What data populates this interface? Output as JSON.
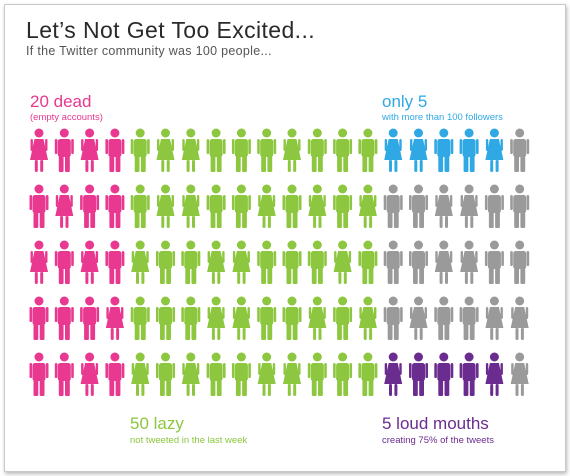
{
  "title": "Let’s Not Get Too Excited...",
  "subtitle": "If the Twitter community was 100 people...",
  "groups": {
    "dead": {
      "headline": "20 dead",
      "detail": "(empty accounts)",
      "count": 20,
      "color": "#e8388f"
    },
    "lazy": {
      "headline": "50 lazy",
      "detail": "not tweeted in the last week",
      "count": 50,
      "color": "#8dc63f"
    },
    "only": {
      "headline": "only 5",
      "detail": "with more than 100 followers",
      "count": 5,
      "color": "#2fa8e4"
    },
    "loud": {
      "headline": "5 loud mouths",
      "detail": "creating 75% of the tweets",
      "count": 5,
      "color": "#6b2c8f"
    },
    "other": {
      "count": 20,
      "color": "#9a9a9a"
    }
  },
  "total_people": 100
}
